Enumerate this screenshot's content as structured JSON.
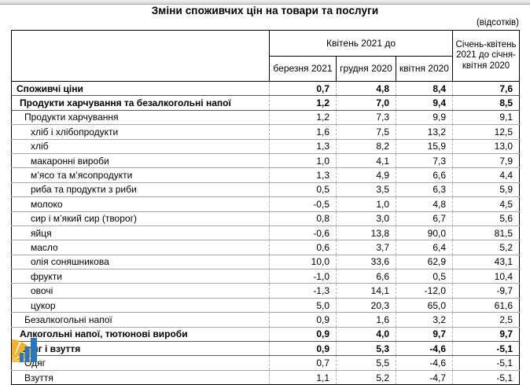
{
  "page": {
    "title": "Зміни споживчих цін на товари та послуги",
    "units_note": "(відсотків)"
  },
  "table": {
    "header": {
      "group_label": "Квітень 2021 до",
      "sub_cols": [
        "березня 2021",
        "грудня 2020",
        "квітня 2020"
      ],
      "period_col": "Січень-квітень 2021 до січня-квітня 2020"
    },
    "rows": [
      {
        "label": "Споживчі ціни",
        "level": 0,
        "bold": true,
        "values": [
          "0,7",
          "4,8",
          "8,4",
          "7,6"
        ]
      },
      {
        "label": "Продукти харчування та безалкогольні напої",
        "level": 1,
        "bold": true,
        "values": [
          "1,2",
          "7,0",
          "9,4",
          "8,5"
        ]
      },
      {
        "label": "Продукти харчування",
        "level": 2,
        "bold": false,
        "values": [
          "1,2",
          "7,3",
          "9,9",
          "9,1"
        ]
      },
      {
        "label": "хліб і хлібопродукти",
        "level": 3,
        "bold": false,
        "values": [
          "1,6",
          "7,5",
          "13,2",
          "12,5"
        ]
      },
      {
        "label": "хліб",
        "level": 3,
        "bold": false,
        "values": [
          "1,3",
          "8,2",
          "15,9",
          "13,0"
        ]
      },
      {
        "label": "макаронні вироби",
        "level": 3,
        "bold": false,
        "values": [
          "1,0",
          "4,1",
          "7,3",
          "7,9"
        ]
      },
      {
        "label": "м’ясо та м’ясопродукти",
        "level": 3,
        "bold": false,
        "values": [
          "1,3",
          "4,9",
          "6,6",
          "4,4"
        ]
      },
      {
        "label": "риба та продукти з риби",
        "level": 3,
        "bold": false,
        "values": [
          "0,5",
          "3,5",
          "6,3",
          "5,9"
        ]
      },
      {
        "label": "молоко",
        "level": 3,
        "bold": false,
        "values": [
          "-0,5",
          "1,0",
          "4,8",
          "4,5"
        ]
      },
      {
        "label": "сир і м’який сир (творог)",
        "level": 3,
        "bold": false,
        "values": [
          "0,8",
          "3,0",
          "6,7",
          "5,6"
        ]
      },
      {
        "label": "яйця",
        "level": 3,
        "bold": false,
        "values": [
          "-0,6",
          "13,8",
          "90,0",
          "81,5"
        ]
      },
      {
        "label": "масло",
        "level": 3,
        "bold": false,
        "values": [
          "0,6",
          "3,7",
          "6,4",
          "5,2"
        ]
      },
      {
        "label": "олія соняшникова",
        "level": 3,
        "bold": false,
        "values": [
          "10,0",
          "33,6",
          "62,9",
          "43,1"
        ]
      },
      {
        "label": "фрукти",
        "level": 3,
        "bold": false,
        "values": [
          "-1,0",
          "6,6",
          "0,5",
          "10,4"
        ]
      },
      {
        "label": "овочі",
        "level": 3,
        "bold": false,
        "values": [
          "-1,3",
          "14,1",
          "-12,0",
          "-9,7"
        ]
      },
      {
        "label": "цукор",
        "level": 3,
        "bold": false,
        "values": [
          "5,0",
          "20,3",
          "65,0",
          "61,6"
        ]
      },
      {
        "label": "Безалкогольні напої",
        "level": 2,
        "bold": false,
        "values": [
          "0,9",
          "1,6",
          "3,2",
          "2,5"
        ]
      },
      {
        "label": "Алкогольні напої, тютюнові вироби",
        "level": 1,
        "bold": true,
        "values": [
          "0,9",
          "4,0",
          "9,7",
          "9,7"
        ]
      },
      {
        "label": "Одяг і взуття",
        "level": 1,
        "bold": true,
        "values": [
          "0,9",
          "5,3",
          "-4,6",
          "-5,1"
        ]
      },
      {
        "label": "Одяг",
        "level": 2,
        "bold": false,
        "values": [
          "0,7",
          "5,5",
          "-4,6",
          "-5,1"
        ]
      },
      {
        "label": "Взуття",
        "level": 2,
        "bold": false,
        "values": [
          "1,1",
          "5,2",
          "-4,7",
          "-5,1"
        ]
      }
    ]
  },
  "logo": {
    "name": "statistics-chart-logo",
    "yellow": "#f3b229",
    "blue": "#2878be"
  }
}
